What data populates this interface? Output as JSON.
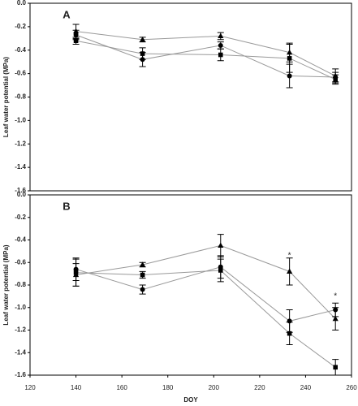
{
  "chart_data": [
    {
      "type": "line",
      "title": "A",
      "y_label": "Leaf water potential (MPa)",
      "x": [
        140,
        169,
        203,
        233,
        253
      ],
      "xlim": [
        120,
        260
      ],
      "ylim": [
        -1.6,
        0
      ],
      "yticks": [
        {
          "value": 0,
          "label": "0.0"
        },
        -0.2,
        -0.4,
        -0.6,
        -0.8,
        {
          "value": -1,
          "label": "-1.0"
        },
        -1.2,
        -1.4,
        -1.6
      ],
      "line_color": "#999999",
      "series": [
        {
          "marker": "circle",
          "color": "#000000",
          "values": [
            -0.27,
            -0.48,
            -0.36,
            -0.62,
            -0.63
          ],
          "errors": [
            0.04,
            0.06,
            0.03,
            0.1,
            0.04
          ]
        },
        {
          "marker": "triangle",
          "color": "#000000",
          "values": [
            -0.24,
            -0.31,
            -0.28,
            -0.42,
            -0.62
          ],
          "errors": [
            0.06,
            0.02,
            0.03,
            0.08,
            0.06
          ]
        },
        {
          "marker": "square",
          "color": "#000000",
          "values": [
            -0.32,
            -0.43,
            -0.44,
            -0.47,
            -0.65
          ],
          "errors": [
            0.03,
            0.05,
            0.05,
            0.12,
            0.04
          ]
        }
      ]
    },
    {
      "type": "line",
      "title": "B",
      "y_label": "Leaf water potential (MPa)",
      "x_label": "DOY",
      "x": [
        140,
        169,
        203,
        233,
        253
      ],
      "xlim": [
        120,
        260
      ],
      "xticks": [
        120,
        140,
        160,
        180,
        200,
        220,
        240,
        260
      ],
      "ylim": [
        -1.6,
        0
      ],
      "yticks": [
        {
          "value": 0,
          "label": "0.0"
        },
        -0.2,
        -0.4,
        -0.6,
        -0.8,
        {
          "value": -1,
          "label": "-1.0"
        },
        -1.2,
        -1.4,
        -1.6
      ],
      "line_color": "#999999",
      "series": [
        {
          "marker": "triangle",
          "color": "#000000",
          "values": [
            -0.71,
            -0.62,
            -0.45,
            -0.68,
            -1.1
          ],
          "errors": [
            0.1,
            0.02,
            0.1,
            0.12,
            0.1
          ]
        },
        {
          "marker": "circle",
          "color": "#000000",
          "values": [
            -0.66,
            -0.84,
            -0.64,
            -1.12,
            -1.02
          ],
          "errors": [
            0.1,
            0.04,
            0.1,
            0.1,
            0.06
          ]
        },
        {
          "marker": "square",
          "color": "#000000",
          "values": [
            -0.69,
            -0.71,
            -0.67,
            -1.23,
            -1.53
          ],
          "errors": [
            0.12,
            0.03,
            0.1,
            0.1,
            0.07
          ]
        }
      ],
      "annotations": [
        {
          "text": "*",
          "x": 233,
          "y": -0.54
        },
        {
          "text": "*",
          "x": 253,
          "y": -0.9
        }
      ]
    }
  ]
}
